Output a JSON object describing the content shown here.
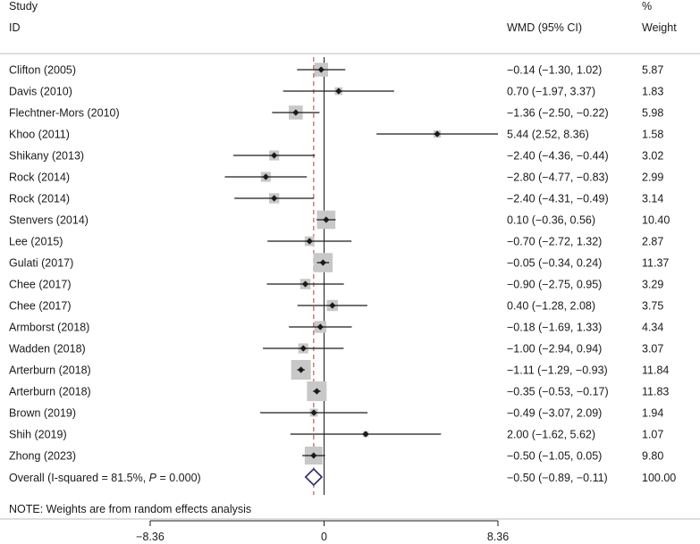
{
  "header": {
    "study_line1": "Study",
    "study_line2": "ID",
    "wmd": "WMD (95% CI)",
    "pct": "%",
    "weight": "Weight"
  },
  "note": "NOTE: Weights are from random effects analysis",
  "overall": {
    "prefix": "Overall  (I-squared = 81.5%, ",
    "p_italic": "P",
    "suffix": " = 0.000)",
    "wmd": 0,
    "est": -0.5,
    "lo": -0.89,
    "hi": -0.11,
    "ci_text": "−0.50 (−0.89, −0.11)",
    "weight": "100.00"
  },
  "chart_data": {
    "type": "forest",
    "title": "",
    "xlabel": "WMD (95% CI)",
    "xlim": [
      -8.36,
      8.36
    ],
    "xticks": [
      -8.36,
      0,
      8.36
    ],
    "xtick_labels": [
      "−8.36",
      "0",
      "8.36"
    ],
    "null_line": 0,
    "pooled_line": -0.5,
    "studies": [
      {
        "name": "Clifton (2005)",
        "est": -0.14,
        "lo": -1.3,
        "hi": 1.02,
        "ci_text": "−0.14 (−1.30, 1.02)",
        "weight": 5.87,
        "weight_text": "5.87"
      },
      {
        "name": "Davis (2010)",
        "est": 0.7,
        "lo": -1.97,
        "hi": 3.37,
        "ci_text": "0.70 (−1.97, 3.37)",
        "weight": 1.83,
        "weight_text": "1.83"
      },
      {
        "name": "Flechtner-Mors (2010)",
        "est": -1.36,
        "lo": -2.5,
        "hi": -0.22,
        "ci_text": "−1.36 (−2.50, −0.22)",
        "weight": 5.98,
        "weight_text": "5.98"
      },
      {
        "name": "Khoo (2011)",
        "est": 5.44,
        "lo": 2.52,
        "hi": 8.36,
        "ci_text": "5.44 (2.52, 8.36)",
        "weight": 1.58,
        "weight_text": "1.58"
      },
      {
        "name": "Shikany (2013)",
        "est": -2.4,
        "lo": -4.36,
        "hi": -0.44,
        "ci_text": "−2.40 (−4.36, −0.44)",
        "weight": 3.02,
        "weight_text": "3.02"
      },
      {
        "name": "Rock (2014)",
        "est": -2.8,
        "lo": -4.77,
        "hi": -0.83,
        "ci_text": "−2.80 (−4.77, −0.83)",
        "weight": 2.99,
        "weight_text": "2.99"
      },
      {
        "name": "Rock (2014)",
        "est": -2.4,
        "lo": -4.31,
        "hi": -0.49,
        "ci_text": "−2.40 (−4.31, −0.49)",
        "weight": 3.14,
        "weight_text": "3.14"
      },
      {
        "name": "Stenvers (2014)",
        "est": 0.1,
        "lo": -0.36,
        "hi": 0.56,
        "ci_text": "0.10 (−0.36, 0.56)",
        "weight": 10.4,
        "weight_text": "10.40"
      },
      {
        "name": "Lee (2015)",
        "est": -0.7,
        "lo": -2.72,
        "hi": 1.32,
        "ci_text": "−0.70 (−2.72, 1.32)",
        "weight": 2.87,
        "weight_text": "2.87"
      },
      {
        "name": "Gulati (2017)",
        "est": -0.05,
        "lo": -0.34,
        "hi": 0.24,
        "ci_text": "−0.05 (−0.34, 0.24)",
        "weight": 11.37,
        "weight_text": "11.37"
      },
      {
        "name": "Chee (2017)",
        "est": -0.9,
        "lo": -2.75,
        "hi": 0.95,
        "ci_text": "−0.90 (−2.75, 0.95)",
        "weight": 3.29,
        "weight_text": "3.29"
      },
      {
        "name": "Chee (2017)",
        "est": 0.4,
        "lo": -1.28,
        "hi": 2.08,
        "ci_text": "0.40 (−1.28, 2.08)",
        "weight": 3.75,
        "weight_text": "3.75"
      },
      {
        "name": "Armborst (2018)",
        "est": -0.18,
        "lo": -1.69,
        "hi": 1.33,
        "ci_text": "−0.18 (−1.69, 1.33)",
        "weight": 4.34,
        "weight_text": "4.34"
      },
      {
        "name": "Wadden (2018)",
        "est": -1.0,
        "lo": -2.94,
        "hi": 0.94,
        "ci_text": "−1.00 (−2.94, 0.94)",
        "weight": 3.07,
        "weight_text": "3.07"
      },
      {
        "name": "Arterburn (2018)",
        "est": -1.11,
        "lo": -1.29,
        "hi": -0.93,
        "ci_text": "−1.11 (−1.29, −0.93)",
        "weight": 11.84,
        "weight_text": "11.84"
      },
      {
        "name": "Arterburn (2018)",
        "est": -0.35,
        "lo": -0.53,
        "hi": -0.17,
        "ci_text": "−0.35 (−0.53, −0.17)",
        "weight": 11.83,
        "weight_text": "11.83"
      },
      {
        "name": "Brown (2019)",
        "est": -0.49,
        "lo": -3.07,
        "hi": 2.09,
        "ci_text": "−0.49 (−3.07, 2.09)",
        "weight": 1.94,
        "weight_text": "1.94"
      },
      {
        "name": "Shih (2019)",
        "est": 2.0,
        "lo": -1.62,
        "hi": 5.62,
        "ci_text": "2.00 (−1.62, 5.62)",
        "weight": 1.07,
        "weight_text": "1.07"
      },
      {
        "name": "Zhong (2023)",
        "est": -0.5,
        "lo": -1.05,
        "hi": 0.05,
        "ci_text": "−0.50 (−1.05, 0.05)",
        "weight": 9.8,
        "weight_text": "9.80"
      }
    ]
  }
}
